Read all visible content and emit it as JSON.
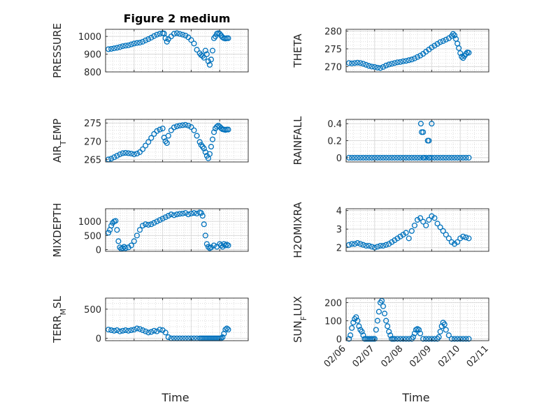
{
  "figure": {
    "title": "Figure 2 medium"
  },
  "chart_data": [
    {
      "type": "scatter",
      "ylabel": "PRESSURE",
      "title": "Figure 2 medium",
      "grid": true,
      "xlim": [
        0,
        5
      ],
      "ylim": [
        800,
        1040
      ],
      "yticks": [
        800,
        900,
        1000
      ],
      "xticks": [
        "02/06",
        "02/07",
        "02/08",
        "02/09",
        "02/10",
        "02/11"
      ],
      "show_xticklabels": false,
      "series": [
        {
          "color": "#0072BD",
          "marker": "circle",
          "x": [
            0.1,
            0.2,
            0.3,
            0.4,
            0.5,
            0.6,
            0.7,
            0.8,
            0.9,
            1.0,
            1.1,
            1.2,
            1.3,
            1.4,
            1.5,
            1.6,
            1.7,
            1.8,
            1.9,
            2.0,
            2.05,
            2.1,
            2.15,
            2.2,
            2.3,
            2.4,
            2.5,
            2.6,
            2.7,
            2.8,
            2.9,
            3.0,
            3.1,
            3.2,
            3.3,
            3.35,
            3.4,
            3.45,
            3.5,
            3.55,
            3.6,
            3.65,
            3.7,
            3.75,
            3.8,
            3.85,
            3.9,
            3.95,
            4.0,
            4.05,
            4.1,
            4.15,
            4.2,
            4.25,
            4.3
          ],
          "y": [
            928,
            930,
            933,
            936,
            940,
            945,
            948,
            950,
            955,
            960,
            963,
            965,
            970,
            978,
            985,
            993,
            1002,
            1010,
            1015,
            1018,
            1016,
            990,
            970,
            985,
            1000,
            1015,
            1018,
            1014,
            1010,
            1005,
            995,
            980,
            960,
            925,
            905,
            895,
            890,
            880,
            920,
            900,
            860,
            840,
            870,
            920,
            990,
            1000,
            1015,
            1018,
            1015,
            1005,
            995,
            990,
            988,
            990,
            990
          ]
        }
      ]
    },
    {
      "type": "scatter",
      "ylabel": "THETA",
      "grid": true,
      "xlim": [
        0,
        5
      ],
      "ylim": [
        268.5,
        280.5
      ],
      "yticks": [
        270,
        275,
        280
      ],
      "xticks": [
        "02/06",
        "02/07",
        "02/08",
        "02/09",
        "02/10",
        "02/11"
      ],
      "show_xticklabels": false,
      "series": [
        {
          "color": "#0072BD",
          "marker": "circle",
          "x": [
            0.1,
            0.2,
            0.3,
            0.4,
            0.5,
            0.6,
            0.7,
            0.8,
            0.9,
            1.0,
            1.1,
            1.2,
            1.3,
            1.4,
            1.5,
            1.6,
            1.7,
            1.8,
            1.9,
            2.0,
            2.1,
            2.2,
            2.3,
            2.4,
            2.5,
            2.6,
            2.7,
            2.8,
            2.9,
            3.0,
            3.1,
            3.2,
            3.3,
            3.4,
            3.5,
            3.6,
            3.7,
            3.75,
            3.8,
            3.85,
            3.9,
            3.95,
            4.0,
            4.05,
            4.1,
            4.15,
            4.2,
            4.25,
            4.3
          ],
          "y": [
            271.0,
            270.9,
            271.0,
            271.1,
            271.0,
            270.8,
            270.5,
            270.2,
            270.0,
            269.9,
            269.7,
            269.6,
            269.9,
            270.3,
            270.6,
            270.8,
            271.0,
            271.2,
            271.3,
            271.5,
            271.6,
            271.8,
            272.0,
            272.3,
            272.7,
            273.1,
            273.6,
            274.2,
            274.8,
            275.4,
            275.9,
            276.4,
            276.9,
            277.2,
            277.6,
            278.0,
            278.6,
            279.2,
            278.8,
            277.8,
            276.5,
            275.2,
            273.8,
            272.8,
            272.4,
            273.0,
            273.6,
            274.0,
            273.9
          ]
        }
      ]
    },
    {
      "type": "scatter",
      "ylabel": "AIR_TEMP",
      "ylabel_display": {
        "base": "AIR",
        "sub": "T",
        "rest": "EMP"
      },
      "grid": true,
      "xlim": [
        0,
        5
      ],
      "ylim": [
        264.3,
        276
      ],
      "yticks": [
        265,
        270,
        275
      ],
      "xticks": [
        "02/06",
        "02/07",
        "02/08",
        "02/09",
        "02/10",
        "02/11"
      ],
      "show_xticklabels": false,
      "series": [
        {
          "color": "#0072BD",
          "marker": "circle",
          "x": [
            0.1,
            0.2,
            0.3,
            0.4,
            0.5,
            0.6,
            0.7,
            0.8,
            0.9,
            1.0,
            1.1,
            1.2,
            1.3,
            1.4,
            1.5,
            1.6,
            1.7,
            1.8,
            1.9,
            2.0,
            2.05,
            2.1,
            2.15,
            2.2,
            2.3,
            2.4,
            2.5,
            2.6,
            2.7,
            2.8,
            2.9,
            3.0,
            3.1,
            3.2,
            3.3,
            3.35,
            3.4,
            3.45,
            3.5,
            3.55,
            3.6,
            3.65,
            3.7,
            3.75,
            3.8,
            3.85,
            3.9,
            3.95,
            4.0,
            4.05,
            4.1,
            4.15,
            4.2,
            4.25,
            4.3
          ],
          "y": [
            265.0,
            265.2,
            265.6,
            266.0,
            266.4,
            266.7,
            266.8,
            266.7,
            266.6,
            266.4,
            266.6,
            267.0,
            267.8,
            268.8,
            269.8,
            270.9,
            272.0,
            272.8,
            273.2,
            273.5,
            271.0,
            270.0,
            269.5,
            271.5,
            273.0,
            273.8,
            274.1,
            274.3,
            274.4,
            274.5,
            274.3,
            273.9,
            273.0,
            271.5,
            269.8,
            269.0,
            268.5,
            268.0,
            267.0,
            266.0,
            265.3,
            266.5,
            268.5,
            270.5,
            272.5,
            273.5,
            274.0,
            274.3,
            274.0,
            273.6,
            273.3,
            273.2,
            273.1,
            273.2,
            273.2
          ]
        }
      ]
    },
    {
      "type": "scatter",
      "ylabel": "RAINFALL",
      "grid": true,
      "xlim": [
        0,
        5
      ],
      "ylim": [
        -0.05,
        0.45
      ],
      "yticks": [
        0,
        0.2,
        0.4
      ],
      "ytick_labels": [
        "0",
        "0.2",
        "0.4"
      ],
      "xticks": [
        "02/06",
        "02/07",
        "02/08",
        "02/09",
        "02/10",
        "02/11"
      ],
      "show_xticklabels": false,
      "series": [
        {
          "color": "#0072BD",
          "marker": "circle",
          "x": [
            0.1,
            0.2,
            0.3,
            0.4,
            0.5,
            0.6,
            0.7,
            0.8,
            0.9,
            1.0,
            1.1,
            1.2,
            1.3,
            1.4,
            1.5,
            1.6,
            1.7,
            1.8,
            1.9,
            2.0,
            2.1,
            2.2,
            2.3,
            2.4,
            2.5,
            2.6,
            2.7,
            2.8,
            2.9,
            3.0,
            3.1,
            3.2,
            3.3,
            3.4,
            3.5,
            3.6,
            3.7,
            3.8,
            3.9,
            4.0,
            4.1,
            4.2,
            4.3,
            2.62,
            2.65,
            2.7,
            2.72,
            2.86,
            2.9,
            2.92,
            3.0
          ],
          "y": [
            0,
            0,
            0,
            0,
            0,
            0,
            0,
            0,
            0,
            0,
            0,
            0,
            0,
            0,
            0,
            0,
            0,
            0,
            0,
            0,
            0,
            0,
            0,
            0,
            0,
            0,
            0,
            0,
            0,
            0,
            0,
            0,
            0,
            0,
            0,
            0,
            0,
            0,
            0,
            0,
            0,
            0,
            0,
            0.4,
            0.3,
            0.3,
            0,
            0.2,
            0.2,
            0,
            0.4
          ]
        }
      ]
    },
    {
      "type": "scatter",
      "ylabel": "MIXDEPTH",
      "grid": true,
      "xlim": [
        0,
        5
      ],
      "ylim": [
        -60,
        1450
      ],
      "yticks": [
        0,
        500,
        1000
      ],
      "xticks": [
        "02/06",
        "02/07",
        "02/08",
        "02/09",
        "02/10",
        "02/11"
      ],
      "show_xticklabels": false,
      "series": [
        {
          "color": "#0072BD",
          "marker": "circle",
          "x": [
            0.1,
            0.15,
            0.2,
            0.25,
            0.3,
            0.35,
            0.4,
            0.45,
            0.5,
            0.55,
            0.6,
            0.65,
            0.7,
            0.8,
            0.9,
            1.0,
            1.1,
            1.2,
            1.3,
            1.4,
            1.5,
            1.6,
            1.7,
            1.8,
            1.9,
            2.0,
            2.1,
            2.2,
            2.3,
            2.4,
            2.5,
            2.6,
            2.7,
            2.8,
            2.9,
            3.0,
            3.1,
            3.2,
            3.3,
            3.35,
            3.4,
            3.45,
            3.5,
            3.55,
            3.6,
            3.65,
            3.7,
            3.8,
            3.9,
            4.0,
            4.05,
            4.1,
            4.15,
            4.2,
            4.25,
            4.3
          ],
          "y": [
            600,
            700,
            850,
            950,
            1000,
            1020,
            700,
            300,
            80,
            30,
            50,
            100,
            50,
            80,
            150,
            300,
            500,
            700,
            850,
            900,
            880,
            900,
            950,
            1000,
            1050,
            1100,
            1150,
            1200,
            1250,
            1220,
            1250,
            1270,
            1280,
            1300,
            1250,
            1280,
            1300,
            1280,
            1320,
            1300,
            1200,
            900,
            500,
            200,
            100,
            50,
            80,
            150,
            100,
            200,
            150,
            100,
            200,
            150,
            180,
            150
          ]
        }
      ]
    },
    {
      "type": "scatter",
      "ylabel": "H2OMIXRA",
      "grid": true,
      "xlim": [
        0,
        5
      ],
      "ylim": [
        1.8,
        4.1
      ],
      "yticks": [
        2,
        3,
        4
      ],
      "xticks": [
        "02/06",
        "02/07",
        "02/08",
        "02/09",
        "02/10",
        "02/11"
      ],
      "show_xticklabels": false,
      "series": [
        {
          "color": "#0072BD",
          "marker": "circle",
          "x": [
            0.1,
            0.2,
            0.3,
            0.4,
            0.5,
            0.6,
            0.7,
            0.8,
            0.9,
            1.0,
            1.1,
            1.2,
            1.3,
            1.4,
            1.5,
            1.6,
            1.7,
            1.8,
            1.9,
            2.0,
            2.1,
            2.2,
            2.3,
            2.4,
            2.5,
            2.6,
            2.7,
            2.8,
            2.9,
            3.0,
            3.1,
            3.2,
            3.3,
            3.4,
            3.5,
            3.6,
            3.7,
            3.8,
            3.9,
            4.0,
            4.1,
            4.2,
            4.3
          ],
          "y": [
            2.15,
            2.2,
            2.2,
            2.25,
            2.2,
            2.15,
            2.1,
            2.1,
            2.05,
            2.0,
            2.05,
            2.1,
            2.1,
            2.15,
            2.2,
            2.3,
            2.4,
            2.5,
            2.6,
            2.7,
            2.8,
            2.5,
            2.9,
            3.2,
            3.5,
            3.6,
            3.4,
            3.2,
            3.5,
            3.7,
            3.6,
            3.3,
            3.1,
            2.9,
            2.7,
            2.5,
            2.3,
            2.2,
            2.3,
            2.5,
            2.6,
            2.55,
            2.5
          ]
        }
      ]
    },
    {
      "type": "scatter",
      "ylabel": "TERR_MSL",
      "ylabel_display": {
        "base": "TERR",
        "sub": "M",
        "rest": "SL"
      },
      "grid": true,
      "xlim": [
        0,
        5
      ],
      "ylim": [
        -40,
        690
      ],
      "yticks": [
        0,
        500
      ],
      "xticks": [
        "02/06",
        "02/07",
        "02/08",
        "02/09",
        "02/10",
        "02/11"
      ],
      "show_xticklabels": false,
      "series": [
        {
          "color": "#0072BD",
          "marker": "circle",
          "x": [
            0.1,
            0.2,
            0.3,
            0.4,
            0.5,
            0.6,
            0.7,
            0.8,
            0.9,
            1.0,
            1.1,
            1.2,
            1.3,
            1.4,
            1.5,
            1.6,
            1.7,
            1.8,
            1.9,
            2.0,
            2.1,
            2.2,
            2.3,
            2.4,
            2.5,
            2.6,
            2.7,
            2.8,
            2.9,
            3.0,
            3.1,
            3.2,
            3.3,
            3.35,
            3.4,
            3.45,
            3.5,
            3.55,
            3.6,
            3.65,
            3.7,
            3.75,
            3.8,
            3.85,
            3.9,
            3.95,
            4.0,
            4.05,
            4.1,
            4.15,
            4.2,
            4.25,
            4.3
          ],
          "y": [
            150,
            140,
            130,
            140,
            120,
            130,
            140,
            130,
            140,
            150,
            170,
            160,
            140,
            120,
            100,
            110,
            130,
            120,
            150,
            140,
            100,
            20,
            0,
            0,
            0,
            0,
            0,
            0,
            0,
            0,
            0,
            0,
            0,
            0,
            0,
            0,
            0,
            0,
            0,
            0,
            0,
            0,
            0,
            0,
            0,
            0,
            0,
            0,
            20,
            80,
            150,
            170,
            150
          ]
        }
      ]
    },
    {
      "type": "scatter",
      "ylabel": "SUN_FLUX",
      "ylabel_display": {
        "base": "SUN",
        "sub": "F",
        "rest": "LUX"
      },
      "grid": true,
      "xlim": [
        0,
        5
      ],
      "ylim": [
        -10,
        225
      ],
      "yticks": [
        0,
        100,
        200
      ],
      "xticks": [
        "02/06",
        "02/07",
        "02/08",
        "02/09",
        "02/10",
        "02/11"
      ],
      "show_xticklabels": true,
      "series": [
        {
          "color": "#0072BD",
          "marker": "circle",
          "x": [
            0.1,
            0.15,
            0.2,
            0.25,
            0.3,
            0.35,
            0.4,
            0.45,
            0.5,
            0.55,
            0.6,
            0.65,
            0.7,
            0.75,
            0.8,
            0.85,
            0.9,
            0.95,
            1.0,
            1.05,
            1.1,
            1.15,
            1.2,
            1.25,
            1.3,
            1.35,
            1.4,
            1.45,
            1.5,
            1.55,
            1.6,
            1.65,
            1.7,
            1.8,
            1.9,
            2.0,
            2.1,
            2.2,
            2.3,
            2.35,
            2.4,
            2.45,
            2.5,
            2.55,
            2.6,
            2.7,
            2.8,
            2.9,
            3.0,
            3.1,
            3.2,
            3.25,
            3.3,
            3.35,
            3.4,
            3.45,
            3.5,
            3.6,
            3.7,
            3.8,
            3.9,
            4.0,
            4.1,
            4.2,
            4.3
          ],
          "y": [
            0,
            20,
            60,
            90,
            110,
            120,
            100,
            70,
            50,
            40,
            20,
            0,
            0,
            0,
            0,
            0,
            0,
            0,
            0,
            50,
            100,
            150,
            200,
            210,
            180,
            140,
            100,
            70,
            40,
            20,
            0,
            0,
            0,
            0,
            0,
            0,
            0,
            0,
            0,
            10,
            30,
            50,
            55,
            50,
            30,
            0,
            0,
            0,
            0,
            0,
            0,
            10,
            40,
            70,
            90,
            80,
            50,
            20,
            0,
            0,
            0,
            0,
            0,
            0,
            0
          ]
        }
      ]
    },
    {
      "type": "axis-labels",
      "xlabel": "Time"
    }
  ],
  "colors": {
    "marker": "#0072BD",
    "axis": "#262626",
    "grid": "#d9d9d9"
  }
}
